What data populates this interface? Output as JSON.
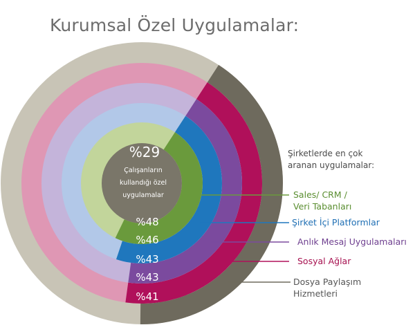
{
  "title": "Kurumsal Özel Uygulamalar:",
  "chart_data": {
    "type": "radial-bar",
    "center": {
      "value": "%29",
      "label_lines": [
        "Çalışanların",
        "kullandığı özel",
        "uygulamalar"
      ],
      "color": "#7a7669"
    },
    "legend_title_lines": [
      "Şirketlerde en çok",
      "aranan uygulamalar:"
    ],
    "series": [
      {
        "name": "Sales/ CRM / Veri Tabanları",
        "label_lines": [
          "Sales/ CRM /",
          "Veri Tabanları"
        ],
        "value": 48,
        "display": "%48",
        "color": "#6a9a3c",
        "track_color": "#c2d59b",
        "label_color": "#5a8e30"
      },
      {
        "name": "Şirket İçi Platformlar",
        "label_lines": [
          "Şirket İçi Platformlar"
        ],
        "value": 46,
        "display": "%46",
        "color": "#1f77bd",
        "track_color": "#b2c8e8",
        "label_color": "#1f6fb4"
      },
      {
        "name": "Anlık Mesaj Uygulamaları",
        "label_lines": [
          "Anlık Mesaj Uygulamaları"
        ],
        "value": 43,
        "display": "%43",
        "color": "#7b4a9e",
        "track_color": "#c4b4da",
        "label_color": "#6e3f8f"
      },
      {
        "name": "Sosyal Ağlar",
        "label_lines": [
          "Sosyal Ağlar"
        ],
        "value": 43,
        "display": "%43",
        "color": "#b0105a",
        "track_color": "#df97b4",
        "label_color": "#a6104f"
      },
      {
        "name": "Dosya Paylaşım Hizmetleri",
        "label_lines": [
          "Dosya Paylaşım",
          "Hizmetleri"
        ],
        "value": 41,
        "display": "%41",
        "color": "#6e6a5d",
        "track_color": "#c8c4b6",
        "label_color": "#555555"
      }
    ]
  }
}
